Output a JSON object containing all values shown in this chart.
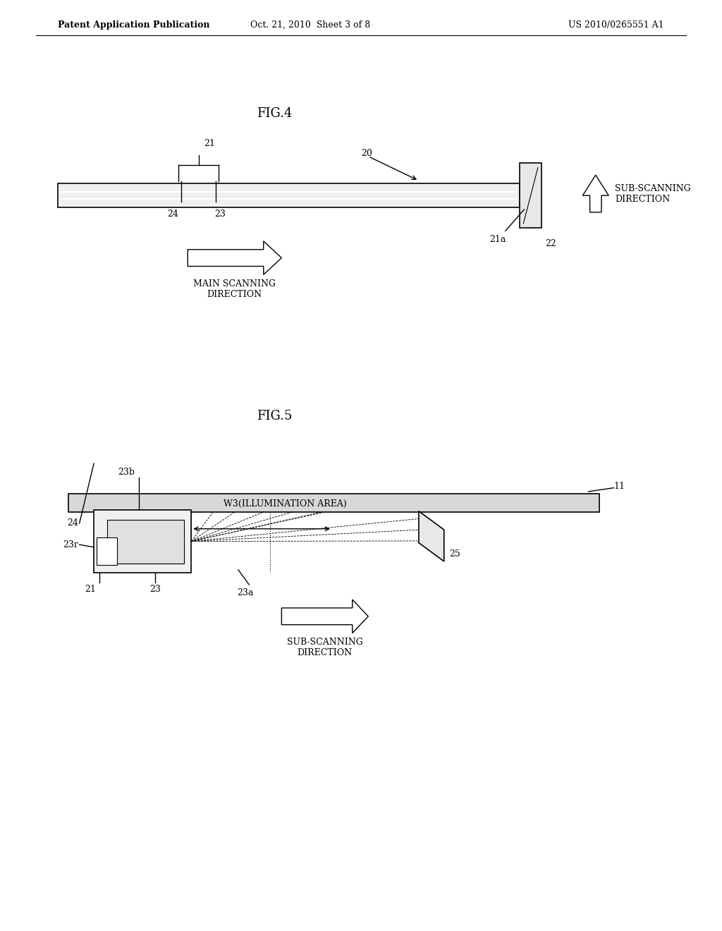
{
  "bg_color": "#ffffff",
  "text_color": "#000000",
  "header_left": "Patent Application Publication",
  "header_mid": "Oct. 21, 2010  Sheet 3 of 8",
  "header_right": "US 2010/0265551 A1",
  "fig4_title": "FIG.4",
  "fig5_title": "FIG.5",
  "line_color": "#000000",
  "gray_light": "#e0e0e0",
  "gray_mid": "#c8c8c8",
  "white": "#ffffff"
}
